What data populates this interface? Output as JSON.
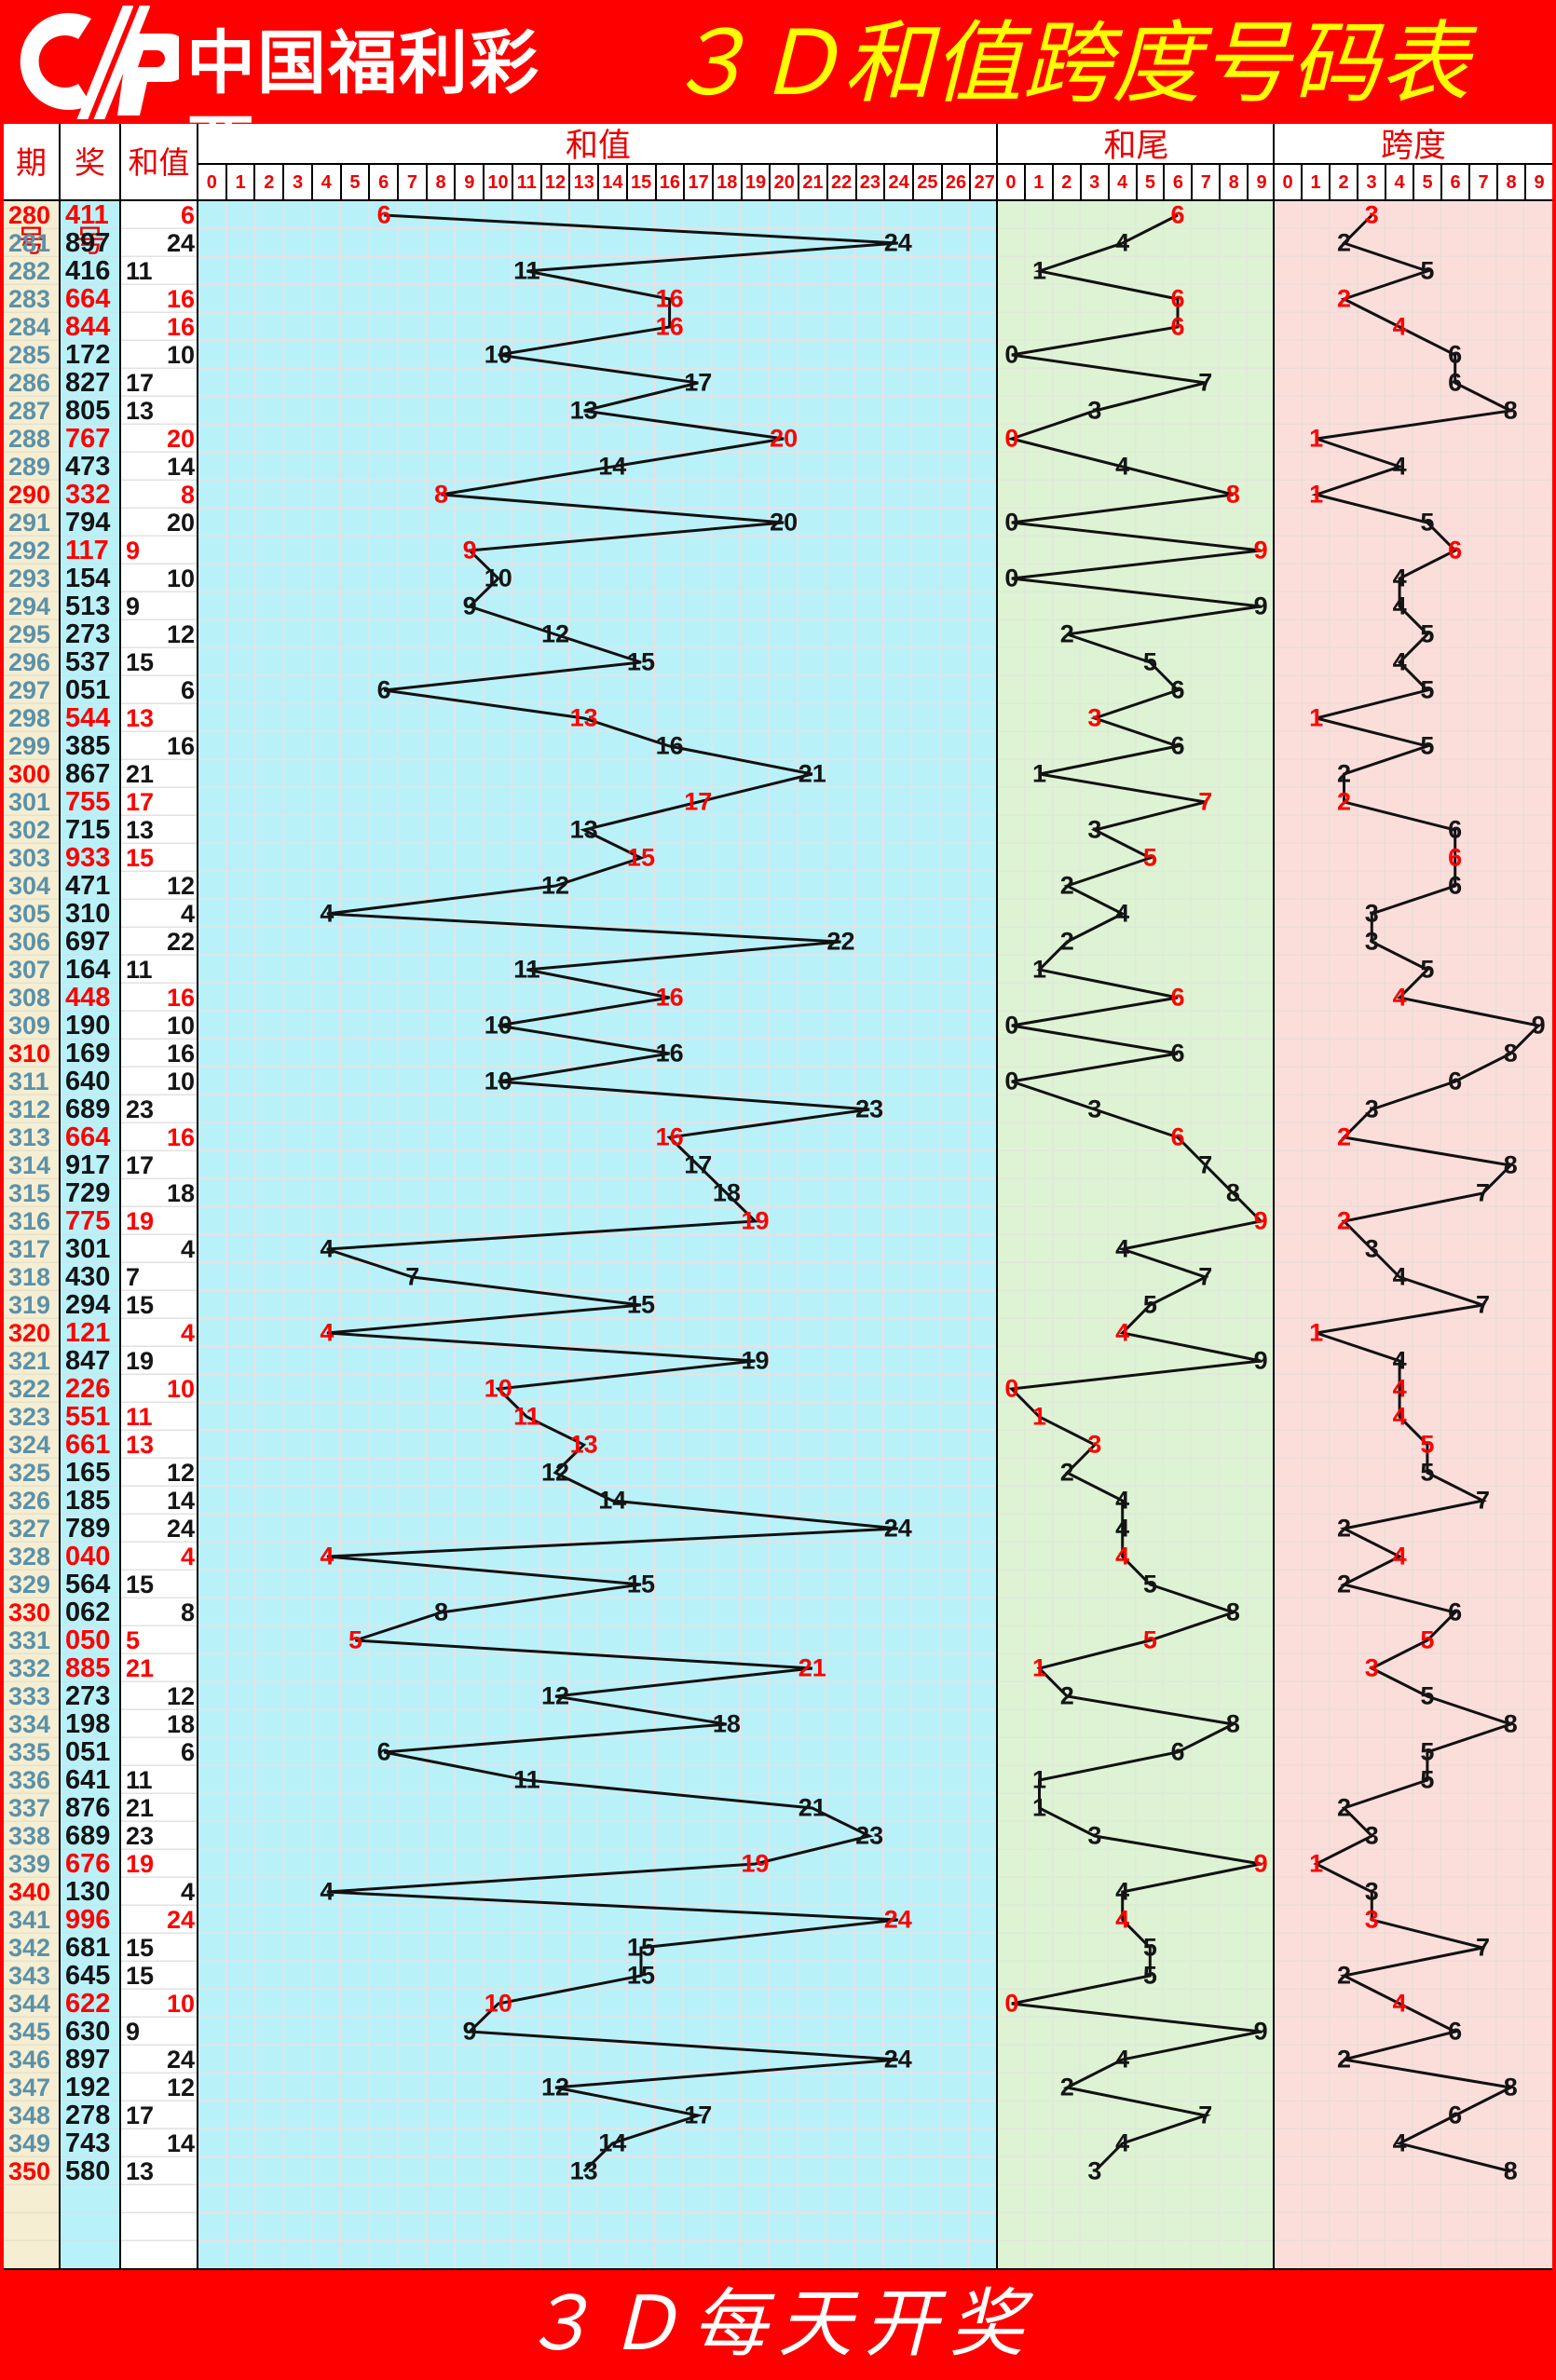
{
  "header": {
    "brand": "中国福利彩票",
    "title": "３Ｄ和值跨度号码表",
    "logo": "cwl-cp-logo"
  },
  "footer": {
    "text": "３Ｄ每天开奖"
  },
  "table_head": {
    "period": "期号",
    "number": "奖号",
    "sum": "和值"
  },
  "sections": {
    "sum": "和值",
    "tail": "和尾",
    "span": "跨度"
  },
  "axis": {
    "sum": [
      0,
      1,
      2,
      3,
      4,
      5,
      6,
      7,
      8,
      9,
      10,
      11,
      12,
      13,
      14,
      15,
      16,
      17,
      18,
      19,
      20,
      21,
      22,
      23,
      24,
      25,
      26,
      27
    ],
    "tail": [
      0,
      1,
      2,
      3,
      4,
      5,
      6,
      7,
      8,
      9
    ],
    "span": [
      0,
      1,
      2,
      3,
      4,
      5,
      6,
      7,
      8,
      9
    ]
  },
  "colors": {
    "frame_red": "#ff0000",
    "title_yellow": "#ffff00",
    "header_text_red": "#e80000",
    "period_cream": "#f5eed3",
    "number_cyan": "#b9f1f9",
    "sum_chart_cyan": "#b9f1f9",
    "tail_green": "#ddf3d4",
    "span_pink": "#fbdeda",
    "period_slate": "#5b91a8",
    "milestone_red": "#ff0000",
    "double_red": "#ff0000",
    "value_black": "#151515",
    "line_black": "#111111"
  },
  "rows": [
    {
      "p": "280",
      "n": "411",
      "s": 6,
      "t": 6,
      "sp": 3,
      "d": 1
    },
    {
      "p": "281",
      "n": "897",
      "s": 24,
      "t": 4,
      "sp": 2,
      "d": 0
    },
    {
      "p": "282",
      "n": "416",
      "s": 11,
      "t": 1,
      "sp": 5,
      "d": 0
    },
    {
      "p": "283",
      "n": "664",
      "s": 16,
      "t": 6,
      "sp": 2,
      "d": 1
    },
    {
      "p": "284",
      "n": "844",
      "s": 16,
      "t": 6,
      "sp": 4,
      "d": 1
    },
    {
      "p": "285",
      "n": "172",
      "s": 10,
      "t": 0,
      "sp": 6,
      "d": 0
    },
    {
      "p": "286",
      "n": "827",
      "s": 17,
      "t": 7,
      "sp": 6,
      "d": 0
    },
    {
      "p": "287",
      "n": "805",
      "s": 13,
      "t": 3,
      "sp": 8,
      "d": 0
    },
    {
      "p": "288",
      "n": "767",
      "s": 20,
      "t": 0,
      "sp": 1,
      "d": 1
    },
    {
      "p": "289",
      "n": "473",
      "s": 14,
      "t": 4,
      "sp": 4,
      "d": 0
    },
    {
      "p": "290",
      "n": "332",
      "s": 8,
      "t": 8,
      "sp": 1,
      "d": 1
    },
    {
      "p": "291",
      "n": "794",
      "s": 20,
      "t": 0,
      "sp": 5,
      "d": 0
    },
    {
      "p": "292",
      "n": "117",
      "s": 9,
      "t": 9,
      "sp": 6,
      "d": 1
    },
    {
      "p": "293",
      "n": "154",
      "s": 10,
      "t": 0,
      "sp": 4,
      "d": 0
    },
    {
      "p": "294",
      "n": "513",
      "s": 9,
      "t": 9,
      "sp": 4,
      "d": 0
    },
    {
      "p": "295",
      "n": "273",
      "s": 12,
      "t": 2,
      "sp": 5,
      "d": 0
    },
    {
      "p": "296",
      "n": "537",
      "s": 15,
      "t": 5,
      "sp": 4,
      "d": 0
    },
    {
      "p": "297",
      "n": "051",
      "s": 6,
      "t": 6,
      "sp": 5,
      "d": 0
    },
    {
      "p": "298",
      "n": "544",
      "s": 13,
      "t": 3,
      "sp": 1,
      "d": 1
    },
    {
      "p": "299",
      "n": "385",
      "s": 16,
      "t": 6,
      "sp": 5,
      "d": 0
    },
    {
      "p": "300",
      "n": "867",
      "s": 21,
      "t": 1,
      "sp": 2,
      "d": 0
    },
    {
      "p": "301",
      "n": "755",
      "s": 17,
      "t": 7,
      "sp": 2,
      "d": 1
    },
    {
      "p": "302",
      "n": "715",
      "s": 13,
      "t": 3,
      "sp": 6,
      "d": 0
    },
    {
      "p": "303",
      "n": "933",
      "s": 15,
      "t": 5,
      "sp": 6,
      "d": 1
    },
    {
      "p": "304",
      "n": "471",
      "s": 12,
      "t": 2,
      "sp": 6,
      "d": 0
    },
    {
      "p": "305",
      "n": "310",
      "s": 4,
      "t": 4,
      "sp": 3,
      "d": 0
    },
    {
      "p": "306",
      "n": "697",
      "s": 22,
      "t": 2,
      "sp": 3,
      "d": 0
    },
    {
      "p": "307",
      "n": "164",
      "s": 11,
      "t": 1,
      "sp": 5,
      "d": 0
    },
    {
      "p": "308",
      "n": "448",
      "s": 16,
      "t": 6,
      "sp": 4,
      "d": 1
    },
    {
      "p": "309",
      "n": "190",
      "s": 10,
      "t": 0,
      "sp": 9,
      "d": 0
    },
    {
      "p": "310",
      "n": "169",
      "s": 16,
      "t": 6,
      "sp": 8,
      "d": 0
    },
    {
      "p": "311",
      "n": "640",
      "s": 10,
      "t": 0,
      "sp": 6,
      "d": 0
    },
    {
      "p": "312",
      "n": "689",
      "s": 23,
      "t": 3,
      "sp": 3,
      "d": 0
    },
    {
      "p": "313",
      "n": "664",
      "s": 16,
      "t": 6,
      "sp": 2,
      "d": 1
    },
    {
      "p": "314",
      "n": "917",
      "s": 17,
      "t": 7,
      "sp": 8,
      "d": 0
    },
    {
      "p": "315",
      "n": "729",
      "s": 18,
      "t": 8,
      "sp": 7,
      "d": 0
    },
    {
      "p": "316",
      "n": "775",
      "s": 19,
      "t": 9,
      "sp": 2,
      "d": 1
    },
    {
      "p": "317",
      "n": "301",
      "s": 4,
      "t": 4,
      "sp": 3,
      "d": 0
    },
    {
      "p": "318",
      "n": "430",
      "s": 7,
      "t": 7,
      "sp": 4,
      "d": 0
    },
    {
      "p": "319",
      "n": "294",
      "s": 15,
      "t": 5,
      "sp": 7,
      "d": 0
    },
    {
      "p": "320",
      "n": "121",
      "s": 4,
      "t": 4,
      "sp": 1,
      "d": 1
    },
    {
      "p": "321",
      "n": "847",
      "s": 19,
      "t": 9,
      "sp": 4,
      "d": 0
    },
    {
      "p": "322",
      "n": "226",
      "s": 10,
      "t": 0,
      "sp": 4,
      "d": 1
    },
    {
      "p": "323",
      "n": "551",
      "s": 11,
      "t": 1,
      "sp": 4,
      "d": 1
    },
    {
      "p": "324",
      "n": "661",
      "s": 13,
      "t": 3,
      "sp": 5,
      "d": 1
    },
    {
      "p": "325",
      "n": "165",
      "s": 12,
      "t": 2,
      "sp": 5,
      "d": 0
    },
    {
      "p": "326",
      "n": "185",
      "s": 14,
      "t": 4,
      "sp": 7,
      "d": 0
    },
    {
      "p": "327",
      "n": "789",
      "s": 24,
      "t": 4,
      "sp": 2,
      "d": 0
    },
    {
      "p": "328",
      "n": "040",
      "s": 4,
      "t": 4,
      "sp": 4,
      "d": 1
    },
    {
      "p": "329",
      "n": "564",
      "s": 15,
      "t": 5,
      "sp": 2,
      "d": 0
    },
    {
      "p": "330",
      "n": "062",
      "s": 8,
      "t": 8,
      "sp": 6,
      "d": 0
    },
    {
      "p": "331",
      "n": "050",
      "s": 5,
      "t": 5,
      "sp": 5,
      "d": 1
    },
    {
      "p": "332",
      "n": "885",
      "s": 21,
      "t": 1,
      "sp": 3,
      "d": 1
    },
    {
      "p": "333",
      "n": "273",
      "s": 12,
      "t": 2,
      "sp": 5,
      "d": 0
    },
    {
      "p": "334",
      "n": "198",
      "s": 18,
      "t": 8,
      "sp": 8,
      "d": 0
    },
    {
      "p": "335",
      "n": "051",
      "s": 6,
      "t": 6,
      "sp": 5,
      "d": 0
    },
    {
      "p": "336",
      "n": "641",
      "s": 11,
      "t": 1,
      "sp": 5,
      "d": 0
    },
    {
      "p": "337",
      "n": "876",
      "s": 21,
      "t": 1,
      "sp": 2,
      "d": 0
    },
    {
      "p": "338",
      "n": "689",
      "s": 23,
      "t": 3,
      "sp": 3,
      "d": 0
    },
    {
      "p": "339",
      "n": "676",
      "s": 19,
      "t": 9,
      "sp": 1,
      "d": 1
    },
    {
      "p": "340",
      "n": "130",
      "s": 4,
      "t": 4,
      "sp": 3,
      "d": 0
    },
    {
      "p": "341",
      "n": "996",
      "s": 24,
      "t": 4,
      "sp": 3,
      "d": 1
    },
    {
      "p": "342",
      "n": "681",
      "s": 15,
      "t": 5,
      "sp": 7,
      "d": 0
    },
    {
      "p": "343",
      "n": "645",
      "s": 15,
      "t": 5,
      "sp": 2,
      "d": 0
    },
    {
      "p": "344",
      "n": "622",
      "s": 10,
      "t": 0,
      "sp": 4,
      "d": 1
    },
    {
      "p": "345",
      "n": "630",
      "s": 9,
      "t": 9,
      "sp": 6,
      "d": 0
    },
    {
      "p": "346",
      "n": "897",
      "s": 24,
      "t": 4,
      "sp": 2,
      "d": 0
    },
    {
      "p": "347",
      "n": "192",
      "s": 12,
      "t": 2,
      "sp": 8,
      "d": 0
    },
    {
      "p": "348",
      "n": "278",
      "s": 17,
      "t": 7,
      "sp": 6,
      "d": 0
    },
    {
      "p": "349",
      "n": "743",
      "s": 14,
      "t": 4,
      "sp": 4,
      "d": 0
    },
    {
      "p": "350",
      "n": "580",
      "s": 13,
      "t": 3,
      "sp": 8,
      "d": 0
    }
  ],
  "chart_data": {
    "type": "line",
    "title": "３Ｄ和值跨度号码表",
    "x_periods": [
      280,
      281,
      282,
      283,
      284,
      285,
      286,
      287,
      288,
      289,
      290,
      291,
      292,
      293,
      294,
      295,
      296,
      297,
      298,
      299,
      300,
      301,
      302,
      303,
      304,
      305,
      306,
      307,
      308,
      309,
      310,
      311,
      312,
      313,
      314,
      315,
      316,
      317,
      318,
      319,
      320,
      321,
      322,
      323,
      324,
      325,
      326,
      327,
      328,
      329,
      330,
      331,
      332,
      333,
      334,
      335,
      336,
      337,
      338,
      339,
      340,
      341,
      342,
      343,
      344,
      345,
      346,
      347,
      348,
      349,
      350
    ],
    "series": [
      {
        "name": "和值",
        "range": [
          0,
          27
        ],
        "values": [
          6,
          24,
          11,
          16,
          16,
          10,
          17,
          13,
          20,
          14,
          8,
          20,
          9,
          10,
          9,
          12,
          15,
          6,
          13,
          16,
          21,
          17,
          13,
          15,
          12,
          4,
          22,
          11,
          16,
          10,
          16,
          10,
          23,
          16,
          17,
          18,
          19,
          4,
          7,
          15,
          4,
          19,
          10,
          11,
          13,
          12,
          14,
          24,
          4,
          15,
          8,
          5,
          21,
          12,
          18,
          6,
          11,
          21,
          23,
          19,
          4,
          24,
          15,
          15,
          10,
          9,
          24,
          12,
          17,
          14,
          13
        ]
      },
      {
        "name": "和尾",
        "range": [
          0,
          9
        ],
        "values": [
          6,
          4,
          1,
          6,
          6,
          0,
          7,
          3,
          0,
          4,
          8,
          0,
          9,
          0,
          9,
          2,
          5,
          6,
          3,
          6,
          1,
          7,
          3,
          5,
          2,
          4,
          2,
          1,
          6,
          0,
          6,
          0,
          3,
          6,
          7,
          8,
          9,
          4,
          7,
          5,
          4,
          9,
          0,
          1,
          3,
          2,
          4,
          4,
          4,
          5,
          8,
          5,
          1,
          2,
          8,
          6,
          1,
          1,
          3,
          9,
          4,
          4,
          5,
          5,
          0,
          9,
          4,
          2,
          7,
          4,
          3
        ]
      },
      {
        "name": "跨度",
        "range": [
          0,
          9
        ],
        "values": [
          3,
          2,
          5,
          2,
          4,
          6,
          6,
          8,
          1,
          4,
          1,
          5,
          6,
          4,
          4,
          5,
          4,
          5,
          1,
          5,
          2,
          2,
          6,
          6,
          6,
          3,
          3,
          5,
          4,
          9,
          8,
          6,
          3,
          2,
          8,
          7,
          2,
          3,
          4,
          7,
          1,
          4,
          4,
          4,
          5,
          5,
          7,
          2,
          4,
          2,
          6,
          5,
          3,
          5,
          8,
          5,
          5,
          2,
          3,
          1,
          3,
          3,
          7,
          2,
          4,
          6,
          2,
          8,
          6,
          4,
          8
        ]
      }
    ],
    "legend_position": "none",
    "grid": true,
    "red_highlight_periods": [
      280,
      283,
      284,
      288,
      290,
      292,
      298,
      301,
      303,
      308,
      313,
      316,
      320,
      322,
      323,
      324,
      328,
      331,
      332,
      339,
      341,
      344
    ]
  }
}
